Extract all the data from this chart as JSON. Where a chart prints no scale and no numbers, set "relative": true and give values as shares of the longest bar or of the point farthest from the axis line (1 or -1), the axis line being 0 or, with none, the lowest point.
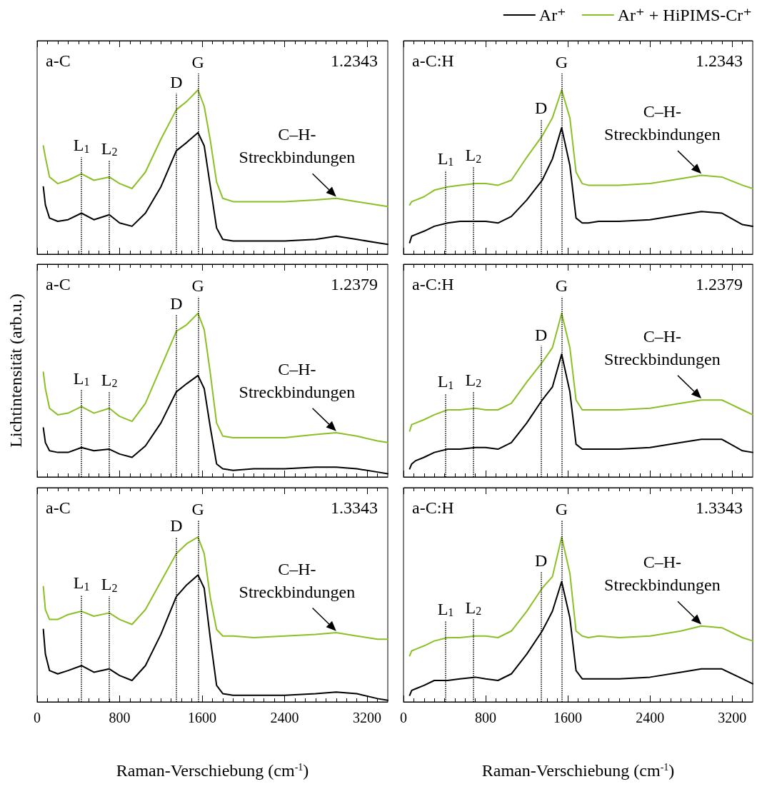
{
  "chart_data": [
    {
      "type": "line",
      "relative": true,
      "marker": "none",
      "tick_labels": false,
      "xlim": [
        0,
        3400
      ],
      "xticks": [
        0,
        {
          "value": 100,
          "label": null
        },
        {
          "value": 200,
          "label": null
        },
        {
          "value": 300,
          "label": null
        },
        {
          "value": 400,
          "label": null
        },
        {
          "value": 500,
          "label": null
        },
        {
          "value": 600,
          "label": null
        },
        {
          "value": 700,
          "label": null
        },
        800,
        {
          "value": 900,
          "label": null
        },
        {
          "value": 1000,
          "label": null
        },
        {
          "value": 1100,
          "label": null
        },
        {
          "value": 1200,
          "label": null
        },
        {
          "value": 1300,
          "label": null
        },
        {
          "value": 1400,
          "label": null
        },
        {
          "value": 1500,
          "label": null
        },
        1600,
        {
          "value": 1700,
          "label": null
        },
        {
          "value": 1800,
          "label": null
        },
        {
          "value": 1900,
          "label": null
        },
        {
          "value": 2000,
          "label": null
        },
        {
          "value": 2100,
          "label": null
        },
        {
          "value": 2200,
          "label": null
        },
        {
          "value": 2300,
          "label": null
        },
        2400,
        {
          "value": 2500,
          "label": null
        },
        {
          "value": 2600,
          "label": null
        },
        {
          "value": 2700,
          "label": null
        },
        {
          "value": 2800,
          "label": null
        },
        {
          "value": 2900,
          "label": null
        },
        {
          "value": 3000,
          "label": null
        },
        {
          "value": 3100,
          "label": null
        },
        3200,
        {
          "value": 3300,
          "label": null
        }
      ],
      "x": [
        60,
        80,
        120,
        200,
        300,
        430,
        550,
        700,
        800,
        920,
        1050,
        1200,
        1350,
        1450,
        1560,
        1620,
        1680,
        1740,
        1800,
        1900,
        2100,
        2400,
        2700,
        2900,
        3100,
        3300,
        3400
      ],
      "series": [
        {
          "color": "#000000",
          "values": [
            0.41,
            0.3,
            0.22,
            0.2,
            0.21,
            0.25,
            0.21,
            0.24,
            0.19,
            0.17,
            0.25,
            0.41,
            0.63,
            0.68,
            0.74,
            0.66,
            0.41,
            0.16,
            0.09,
            0.08,
            0.08,
            0.08,
            0.09,
            0.11,
            0.09,
            0.07,
            0.06
          ]
        },
        {
          "color": "#8cbf26",
          "values": [
            0.66,
            0.59,
            0.47,
            0.43,
            0.45,
            0.49,
            0.45,
            0.47,
            0.43,
            0.4,
            0.5,
            0.7,
            0.88,
            0.93,
            1,
            0.9,
            0.69,
            0.44,
            0.34,
            0.32,
            0.32,
            0.32,
            0.33,
            0.34,
            0.32,
            0.3,
            0.29
          ]
        }
      ],
      "ref_lines": [
        {
          "axis": "x",
          "value": 430,
          "label": "L$_{1}$",
          "line_style": "dotted",
          "color": "#000000"
        },
        {
          "axis": "x",
          "value": 700,
          "label": "L$_{2}$",
          "line_style": "dotted",
          "color": "#000000"
        },
        {
          "axis": "x",
          "value": 1350,
          "label": "D",
          "line_style": "dotted",
          "color": "#000000"
        },
        {
          "axis": "x",
          "value": 1560,
          "label": "G",
          "line_style": "dotted",
          "color": "#000000"
        }
      ],
      "annotations": [
        "a-C",
        "1.2343",
        "C–H-\nStreckbindungen"
      ]
    },
    {
      "type": "line",
      "relative": true,
      "marker": "none",
      "tick_labels": false,
      "xlim": [
        0,
        3400
      ],
      "legend": "top right",
      "xticks": [
        0,
        {
          "value": 100,
          "label": null
        },
        {
          "value": 200,
          "label": null
        },
        {
          "value": 300,
          "label": null
        },
        {
          "value": 400,
          "label": null
        },
        {
          "value": 500,
          "label": null
        },
        {
          "value": 600,
          "label": null
        },
        {
          "value": 700,
          "label": null
        },
        800,
        {
          "value": 900,
          "label": null
        },
        {
          "value": 1000,
          "label": null
        },
        {
          "value": 1100,
          "label": null
        },
        {
          "value": 1200,
          "label": null
        },
        {
          "value": 1300,
          "label": null
        },
        {
          "value": 1400,
          "label": null
        },
        {
          "value": 1500,
          "label": null
        },
        1600,
        {
          "value": 1700,
          "label": null
        },
        {
          "value": 1800,
          "label": null
        },
        {
          "value": 1900,
          "label": null
        },
        {
          "value": 2000,
          "label": null
        },
        {
          "value": 2100,
          "label": null
        },
        {
          "value": 2200,
          "label": null
        },
        {
          "value": 2300,
          "label": null
        },
        2400,
        {
          "value": 2500,
          "label": null
        },
        {
          "value": 2600,
          "label": null
        },
        {
          "value": 2700,
          "label": null
        },
        {
          "value": 2800,
          "label": null
        },
        {
          "value": 2900,
          "label": null
        },
        {
          "value": 3000,
          "label": null
        },
        {
          "value": 3100,
          "label": null
        },
        3200,
        {
          "value": 3300,
          "label": null
        }
      ],
      "x": [
        60,
        80,
        120,
        200,
        300,
        430,
        550,
        700,
        800,
        920,
        1050,
        1200,
        1350,
        1450,
        1540,
        1620,
        1680,
        1740,
        1800,
        1900,
        2100,
        2400,
        2700,
        2900,
        3100,
        3300,
        3400
      ],
      "series": [
        {
          "name": "Ar⁺",
          "color": "#000000",
          "values": [
            0.07,
            0.11,
            0.12,
            0.14,
            0.17,
            0.19,
            0.2,
            0.2,
            0.2,
            0.19,
            0.23,
            0.33,
            0.45,
            0.58,
            0.77,
            0.54,
            0.22,
            0.19,
            0.19,
            0.2,
            0.2,
            0.21,
            0.24,
            0.26,
            0.25,
            0.18,
            0.17
          ]
        },
        {
          "name": "Ar⁺ + HiPIMS-Cr⁺",
          "color": "#8cbf26",
          "values": [
            0.3,
            0.32,
            0.33,
            0.35,
            0.39,
            0.41,
            0.42,
            0.43,
            0.43,
            0.42,
            0.45,
            0.59,
            0.72,
            0.83,
            1,
            0.83,
            0.5,
            0.43,
            0.42,
            0.42,
            0.42,
            0.43,
            0.46,
            0.48,
            0.47,
            0.42,
            0.4
          ]
        }
      ],
      "ref_lines": [
        {
          "axis": "x",
          "value": 410,
          "label": "L$_{1}$",
          "line_style": "dotted",
          "color": "#000000"
        },
        {
          "axis": "x",
          "value": 680,
          "label": "L$_{2}$",
          "line_style": "dotted",
          "color": "#000000"
        },
        {
          "axis": "x",
          "value": 1340,
          "label": "D",
          "line_style": "dotted",
          "color": "#000000"
        },
        {
          "axis": "x",
          "value": 1540,
          "label": "G",
          "line_style": "dotted",
          "color": "#000000"
        }
      ],
      "annotations": [
        "a-C:H",
        "1.2343",
        "C–H-\nStreckbindungen"
      ]
    },
    {
      "type": "line",
      "relative": true,
      "marker": "none",
      "tick_labels": false,
      "xlim": [
        0,
        3400
      ],
      "ylabel": "Lichtintensität (arb.u.)",
      "xticks": [
        0,
        {
          "value": 100,
          "label": null
        },
        {
          "value": 200,
          "label": null
        },
        {
          "value": 300,
          "label": null
        },
        {
          "value": 400,
          "label": null
        },
        {
          "value": 500,
          "label": null
        },
        {
          "value": 600,
          "label": null
        },
        {
          "value": 700,
          "label": null
        },
        800,
        {
          "value": 900,
          "label": null
        },
        {
          "value": 1000,
          "label": null
        },
        {
          "value": 1100,
          "label": null
        },
        {
          "value": 1200,
          "label": null
        },
        {
          "value": 1300,
          "label": null
        },
        {
          "value": 1400,
          "label": null
        },
        {
          "value": 1500,
          "label": null
        },
        1600,
        {
          "value": 1700,
          "label": null
        },
        {
          "value": 1800,
          "label": null
        },
        {
          "value": 1900,
          "label": null
        },
        {
          "value": 2000,
          "label": null
        },
        {
          "value": 2100,
          "label": null
        },
        {
          "value": 2200,
          "label": null
        },
        {
          "value": 2300,
          "label": null
        },
        2400,
        {
          "value": 2500,
          "label": null
        },
        {
          "value": 2600,
          "label": null
        },
        {
          "value": 2700,
          "label": null
        },
        {
          "value": 2800,
          "label": null
        },
        {
          "value": 2900,
          "label": null
        },
        {
          "value": 3000,
          "label": null
        },
        {
          "value": 3100,
          "label": null
        },
        3200,
        {
          "value": 3300,
          "label": null
        }
      ],
      "x": [
        60,
        80,
        120,
        200,
        300,
        430,
        550,
        700,
        800,
        920,
        1050,
        1200,
        1350,
        1450,
        1560,
        1620,
        1680,
        1740,
        1800,
        1900,
        2100,
        2400,
        2700,
        2900,
        3100,
        3300,
        3400
      ],
      "series": [
        {
          "color": "#000000",
          "values": [
            0.3,
            0.21,
            0.16,
            0.15,
            0.15,
            0.18,
            0.16,
            0.17,
            0.14,
            0.12,
            0.19,
            0.33,
            0.52,
            0.57,
            0.62,
            0.54,
            0.3,
            0.08,
            0.05,
            0.04,
            0.05,
            0.05,
            0.06,
            0.06,
            0.05,
            0.03,
            0.02
          ]
        },
        {
          "color": "#8cbf26",
          "values": [
            0.64,
            0.54,
            0.42,
            0.38,
            0.39,
            0.43,
            0.39,
            0.42,
            0.37,
            0.34,
            0.45,
            0.67,
            0.89,
            0.93,
            1,
            0.9,
            0.63,
            0.33,
            0.25,
            0.24,
            0.24,
            0.24,
            0.26,
            0.27,
            0.25,
            0.22,
            0.21
          ]
        }
      ],
      "ref_lines": [
        {
          "axis": "x",
          "value": 430,
          "label": "L$_{1}$",
          "line_style": "dotted",
          "color": "#000000"
        },
        {
          "axis": "x",
          "value": 700,
          "label": "L$_{2}$",
          "line_style": "dotted",
          "color": "#000000"
        },
        {
          "axis": "x",
          "value": 1350,
          "label": "D",
          "line_style": "dotted",
          "color": "#000000"
        },
        {
          "axis": "x",
          "value": 1560,
          "label": "G",
          "line_style": "dotted",
          "color": "#000000"
        }
      ],
      "annotations": [
        "a-C",
        "1.2379",
        "C–H-\nStreckbindungen"
      ]
    },
    {
      "type": "line",
      "relative": true,
      "marker": "none",
      "tick_labels": false,
      "xlim": [
        0,
        3400
      ],
      "xticks": [
        0,
        {
          "value": 100,
          "label": null
        },
        {
          "value": 200,
          "label": null
        },
        {
          "value": 300,
          "label": null
        },
        {
          "value": 400,
          "label": null
        },
        {
          "value": 500,
          "label": null
        },
        {
          "value": 600,
          "label": null
        },
        {
          "value": 700,
          "label": null
        },
        800,
        {
          "value": 900,
          "label": null
        },
        {
          "value": 1000,
          "label": null
        },
        {
          "value": 1100,
          "label": null
        },
        {
          "value": 1200,
          "label": null
        },
        {
          "value": 1300,
          "label": null
        },
        {
          "value": 1400,
          "label": null
        },
        {
          "value": 1500,
          "label": null
        },
        1600,
        {
          "value": 1700,
          "label": null
        },
        {
          "value": 1800,
          "label": null
        },
        {
          "value": 1900,
          "label": null
        },
        {
          "value": 2000,
          "label": null
        },
        {
          "value": 2100,
          "label": null
        },
        {
          "value": 2200,
          "label": null
        },
        {
          "value": 2300,
          "label": null
        },
        2400,
        {
          "value": 2500,
          "label": null
        },
        {
          "value": 2600,
          "label": null
        },
        {
          "value": 2700,
          "label": null
        },
        {
          "value": 2800,
          "label": null
        },
        {
          "value": 2900,
          "label": null
        },
        {
          "value": 3000,
          "label": null
        },
        {
          "value": 3100,
          "label": null
        },
        3200,
        {
          "value": 3300,
          "label": null
        }
      ],
      "x": [
        60,
        80,
        120,
        200,
        300,
        430,
        550,
        700,
        800,
        920,
        1050,
        1200,
        1350,
        1450,
        1540,
        1620,
        1680,
        1740,
        1800,
        1900,
        2100,
        2400,
        2700,
        2900,
        3100,
        3300,
        3400
      ],
      "series": [
        {
          "color": "#000000",
          "values": [
            0.05,
            0.08,
            0.1,
            0.12,
            0.15,
            0.17,
            0.17,
            0.18,
            0.18,
            0.17,
            0.21,
            0.33,
            0.47,
            0.55,
            0.75,
            0.52,
            0.2,
            0.17,
            0.17,
            0.17,
            0.17,
            0.18,
            0.21,
            0.23,
            0.23,
            0.16,
            0.15
          ]
        },
        {
          "color": "#8cbf26",
          "values": [
            0.28,
            0.32,
            0.33,
            0.35,
            0.38,
            0.41,
            0.41,
            0.42,
            0.41,
            0.41,
            0.45,
            0.58,
            0.7,
            0.79,
            1,
            0.79,
            0.47,
            0.41,
            0.41,
            0.41,
            0.41,
            0.42,
            0.45,
            0.47,
            0.47,
            0.41,
            0.38
          ]
        }
      ],
      "ref_lines": [
        {
          "axis": "x",
          "value": 410,
          "label": "L$_{1}$",
          "line_style": "dotted",
          "color": "#000000"
        },
        {
          "axis": "x",
          "value": 680,
          "label": "L$_{2}$",
          "line_style": "dotted",
          "color": "#000000"
        },
        {
          "axis": "x",
          "value": 1340,
          "label": "D",
          "line_style": "dotted",
          "color": "#000000"
        },
        {
          "axis": "x",
          "value": 1540,
          "label": "G",
          "line_style": "dotted",
          "color": "#000000"
        }
      ],
      "annotations": [
        "a-C:H",
        "1.2379",
        "C–H-\nStreckbindungen"
      ]
    },
    {
      "type": "line",
      "relative": true,
      "marker": "none",
      "tick_labels": "x",
      "xlim": [
        0,
        3400
      ],
      "xlabel": "Raman-Verschiebung (cm$^{-1}$)",
      "xticks": [
        0,
        {
          "value": 100,
          "label": null
        },
        {
          "value": 200,
          "label": null
        },
        {
          "value": 300,
          "label": null
        },
        {
          "value": 400,
          "label": null
        },
        {
          "value": 500,
          "label": null
        },
        {
          "value": 600,
          "label": null
        },
        {
          "value": 700,
          "label": null
        },
        800,
        {
          "value": 900,
          "label": null
        },
        {
          "value": 1000,
          "label": null
        },
        {
          "value": 1100,
          "label": null
        },
        {
          "value": 1200,
          "label": null
        },
        {
          "value": 1300,
          "label": null
        },
        {
          "value": 1400,
          "label": null
        },
        {
          "value": 1500,
          "label": null
        },
        1600,
        {
          "value": 1700,
          "label": null
        },
        {
          "value": 1800,
          "label": null
        },
        {
          "value": 1900,
          "label": null
        },
        {
          "value": 2000,
          "label": null
        },
        {
          "value": 2100,
          "label": null
        },
        {
          "value": 2200,
          "label": null
        },
        {
          "value": 2300,
          "label": null
        },
        2400,
        {
          "value": 2500,
          "label": null
        },
        {
          "value": 2600,
          "label": null
        },
        {
          "value": 2700,
          "label": null
        },
        {
          "value": 2800,
          "label": null
        },
        {
          "value": 2900,
          "label": null
        },
        {
          "value": 3000,
          "label": null
        },
        {
          "value": 3100,
          "label": null
        },
        3200,
        {
          "value": 3300,
          "label": null
        }
      ],
      "x": [
        60,
        80,
        120,
        200,
        300,
        430,
        550,
        700,
        800,
        920,
        1050,
        1200,
        1350,
        1450,
        1560,
        1620,
        1680,
        1740,
        1800,
        1900,
        2100,
        2400,
        2700,
        2900,
        3100,
        3300,
        3400
      ],
      "series": [
        {
          "color": "#000000",
          "values": [
            0.44,
            0.29,
            0.19,
            0.17,
            0.19,
            0.22,
            0.18,
            0.2,
            0.16,
            0.13,
            0.22,
            0.41,
            0.64,
            0.71,
            0.77,
            0.69,
            0.38,
            0.1,
            0.05,
            0.04,
            0.04,
            0.04,
            0.05,
            0.06,
            0.05,
            0.02,
            0.01
          ]
        },
        {
          "color": "#8cbf26",
          "values": [
            0.7,
            0.56,
            0.5,
            0.5,
            0.53,
            0.55,
            0.52,
            0.54,
            0.5,
            0.47,
            0.56,
            0.73,
            0.9,
            0.96,
            1,
            0.9,
            0.63,
            0.44,
            0.4,
            0.4,
            0.39,
            0.4,
            0.41,
            0.42,
            0.4,
            0.38,
            0.38
          ]
        }
      ],
      "ref_lines": [
        {
          "axis": "x",
          "value": 430,
          "label": "L$_{1}$",
          "line_style": "dotted",
          "color": "#000000"
        },
        {
          "axis": "x",
          "value": 700,
          "label": "L$_{2}$",
          "line_style": "dotted",
          "color": "#000000"
        },
        {
          "axis": "x",
          "value": 1350,
          "label": "D",
          "line_style": "dotted",
          "color": "#000000"
        },
        {
          "axis": "x",
          "value": 1560,
          "label": "G",
          "line_style": "dotted",
          "color": "#000000"
        }
      ],
      "annotations": [
        "a-C",
        "1.3343",
        "C–H-\nStreckbindungen"
      ]
    },
    {
      "type": "line",
      "relative": true,
      "marker": "none",
      "tick_labels": "x",
      "xlim": [
        0,
        3400
      ],
      "xlabel": "Raman-Verschiebung (cm$^{-1}$)",
      "xticks": [
        0,
        {
          "value": 100,
          "label": null
        },
        {
          "value": 200,
          "label": null
        },
        {
          "value": 300,
          "label": null
        },
        {
          "value": 400,
          "label": null
        },
        {
          "value": 500,
          "label": null
        },
        {
          "value": 600,
          "label": null
        },
        {
          "value": 700,
          "label": null
        },
        800,
        {
          "value": 900,
          "label": null
        },
        {
          "value": 1000,
          "label": null
        },
        {
          "value": 1100,
          "label": null
        },
        {
          "value": 1200,
          "label": null
        },
        {
          "value": 1300,
          "label": null
        },
        {
          "value": 1400,
          "label": null
        },
        {
          "value": 1500,
          "label": null
        },
        1600,
        {
          "value": 1700,
          "label": null
        },
        {
          "value": 1800,
          "label": null
        },
        {
          "value": 1900,
          "label": null
        },
        {
          "value": 2000,
          "label": null
        },
        {
          "value": 2100,
          "label": null
        },
        {
          "value": 2200,
          "label": null
        },
        {
          "value": 2300,
          "label": null
        },
        2400,
        {
          "value": 2500,
          "label": null
        },
        {
          "value": 2600,
          "label": null
        },
        {
          "value": 2700,
          "label": null
        },
        {
          "value": 2800,
          "label": null
        },
        {
          "value": 2900,
          "label": null
        },
        {
          "value": 3000,
          "label": null
        },
        {
          "value": 3100,
          "label": null
        },
        3200,
        {
          "value": 3300,
          "label": null
        }
      ],
      "x": [
        60,
        80,
        120,
        200,
        300,
        430,
        550,
        700,
        800,
        920,
        1050,
        1200,
        1350,
        1450,
        1540,
        1620,
        1680,
        1740,
        1800,
        1900,
        2100,
        2400,
        2700,
        2900,
        3100,
        3300,
        3400
      ],
      "series": [
        {
          "color": "#000000",
          "values": [
            0.04,
            0.07,
            0.08,
            0.1,
            0.13,
            0.13,
            0.14,
            0.15,
            0.14,
            0.13,
            0.17,
            0.29,
            0.43,
            0.55,
            0.73,
            0.51,
            0.19,
            0.14,
            0.14,
            0.14,
            0.14,
            0.15,
            0.18,
            0.2,
            0.2,
            0.14,
            0.11
          ]
        },
        {
          "color": "#8cbf26",
          "values": [
            0.28,
            0.31,
            0.32,
            0.34,
            0.37,
            0.39,
            0.39,
            0.4,
            0.4,
            0.39,
            0.43,
            0.55,
            0.69,
            0.76,
            1,
            0.78,
            0.43,
            0.4,
            0.39,
            0.4,
            0.39,
            0.4,
            0.43,
            0.46,
            0.45,
            0.39,
            0.37
          ]
        }
      ],
      "ref_lines": [
        {
          "axis": "x",
          "value": 410,
          "label": "L$_{1}$",
          "line_style": "dotted",
          "color": "#000000"
        },
        {
          "axis": "x",
          "value": 680,
          "label": "L$_{2}$",
          "line_style": "dotted",
          "color": "#000000"
        },
        {
          "axis": "x",
          "value": 1340,
          "label": "D",
          "line_style": "dotted",
          "color": "#000000"
        },
        {
          "axis": "x",
          "value": 1540,
          "label": "G",
          "line_style": "dotted",
          "color": "#000000"
        }
      ],
      "annotations": [
        "a-C:H",
        "1.3343",
        "C–H-\nStreckbindungen"
      ]
    }
  ]
}
